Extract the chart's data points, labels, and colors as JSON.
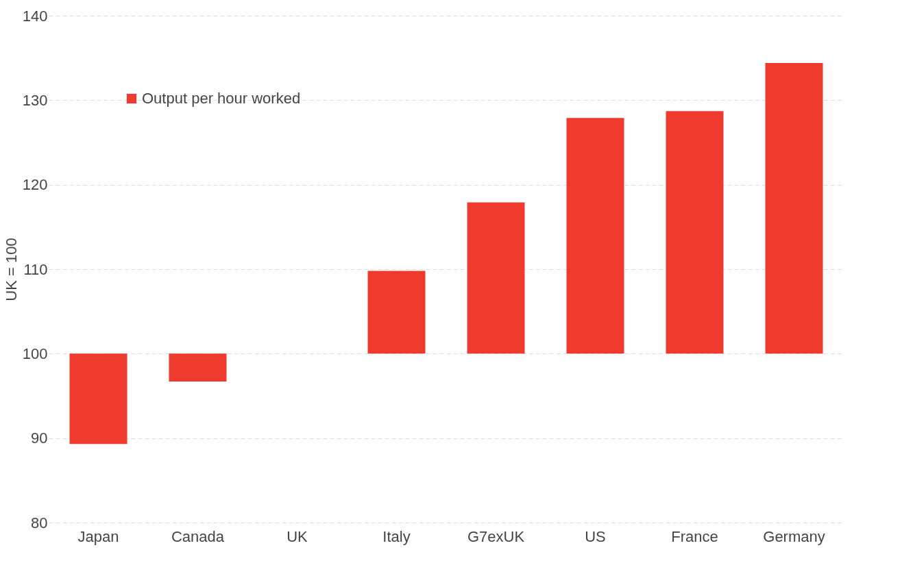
{
  "chart_data": {
    "type": "bar",
    "ylabel": "UK = 100",
    "categories": [
      "Japan",
      "Canada",
      "UK",
      "Italy",
      "G7exUK",
      "US",
      "France",
      "Germany"
    ],
    "series": [
      {
        "name": "Output per hour worked",
        "color": "#ee3b2e",
        "base": [
          100,
          100,
          null,
          100,
          100,
          100,
          100,
          100
        ],
        "values": [
          -10.7,
          -3.3,
          null,
          9.8,
          17.9,
          27.9,
          28.7,
          34.4
        ]
      }
    ],
    "ylim": [
      80,
      140
    ],
    "yticks": [
      80,
      90,
      100,
      110,
      120,
      130,
      140
    ],
    "grid": "y",
    "legend": "top left"
  }
}
